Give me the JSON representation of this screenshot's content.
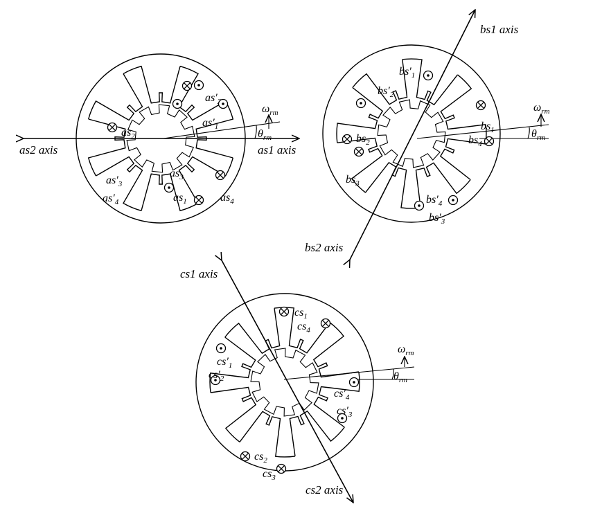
{
  "motors": [
    {
      "axis1_label": "as1 axis",
      "axis2_label": "as2 axis",
      "omega": "ω",
      "omega_sub": "rm",
      "theta": "θ",
      "theta_sub": "rm",
      "coils": [
        {
          "base": "as",
          "sub": "2",
          "prime": "",
          "symbol": "cross"
        },
        {
          "base": "as",
          "sub": "3",
          "prime": "",
          "symbol": "cross"
        },
        {
          "base": "as",
          "sub": "2",
          "prime": "′",
          "symbol": "dot"
        },
        {
          "base": "as",
          "sub": "1",
          "prime": "′",
          "symbol": "dot"
        },
        {
          "base": "as",
          "sub": "3",
          "prime": "′",
          "symbol": "dot"
        },
        {
          "base": "as",
          "sub": "4",
          "prime": "′",
          "symbol": "dot"
        },
        {
          "base": "as",
          "sub": "1",
          "prime": "",
          "symbol": "cross"
        },
        {
          "base": "as",
          "sub": "4",
          "prime": "",
          "symbol": "cross"
        }
      ]
    },
    {
      "axis1_label": "bs1 axis",
      "axis2_label": "bs2 axis",
      "omega": "ω",
      "omega_sub": "rm",
      "theta": "θ",
      "theta_sub": "rm",
      "coils": [
        {
          "base": "bs",
          "sub": "1",
          "prime": "′",
          "symbol": "dot"
        },
        {
          "base": "bs",
          "sub": "2",
          "prime": "′",
          "symbol": "dot"
        },
        {
          "base": "bs",
          "sub": "1",
          "prime": "",
          "symbol": "cross"
        },
        {
          "base": "bs",
          "sub": "4",
          "prime": "",
          "symbol": "cross"
        },
        {
          "base": "bs",
          "sub": "2",
          "prime": "",
          "symbol": "cross"
        },
        {
          "base": "bs",
          "sub": "3",
          "prime": "",
          "symbol": "cross"
        },
        {
          "base": "bs",
          "sub": "4",
          "prime": "′",
          "symbol": "dot"
        },
        {
          "base": "bs",
          "sub": "3",
          "prime": "′",
          "symbol": "dot"
        }
      ]
    },
    {
      "axis1_label": "cs1 axis",
      "axis2_label": "cs2 axis",
      "omega": "ω",
      "omega_sub": "rm",
      "theta": "θ",
      "theta_sub": "rm",
      "coils": [
        {
          "base": "cs",
          "sub": "1",
          "prime": "",
          "symbol": "cross"
        },
        {
          "base": "cs",
          "sub": "4",
          "prime": "",
          "symbol": "cross"
        },
        {
          "base": "cs",
          "sub": "1",
          "prime": "′",
          "symbol": "dot"
        },
        {
          "base": "cs",
          "sub": "2",
          "prime": "′",
          "symbol": "dot"
        },
        {
          "base": "cs",
          "sub": "4",
          "prime": "′",
          "symbol": "dot"
        },
        {
          "base": "cs",
          "sub": "3",
          "prime": "′",
          "symbol": "dot"
        },
        {
          "base": "cs",
          "sub": "2",
          "prime": "",
          "symbol": "cross"
        },
        {
          "base": "cs",
          "sub": "3",
          "prime": "",
          "symbol": "cross"
        }
      ]
    }
  ]
}
